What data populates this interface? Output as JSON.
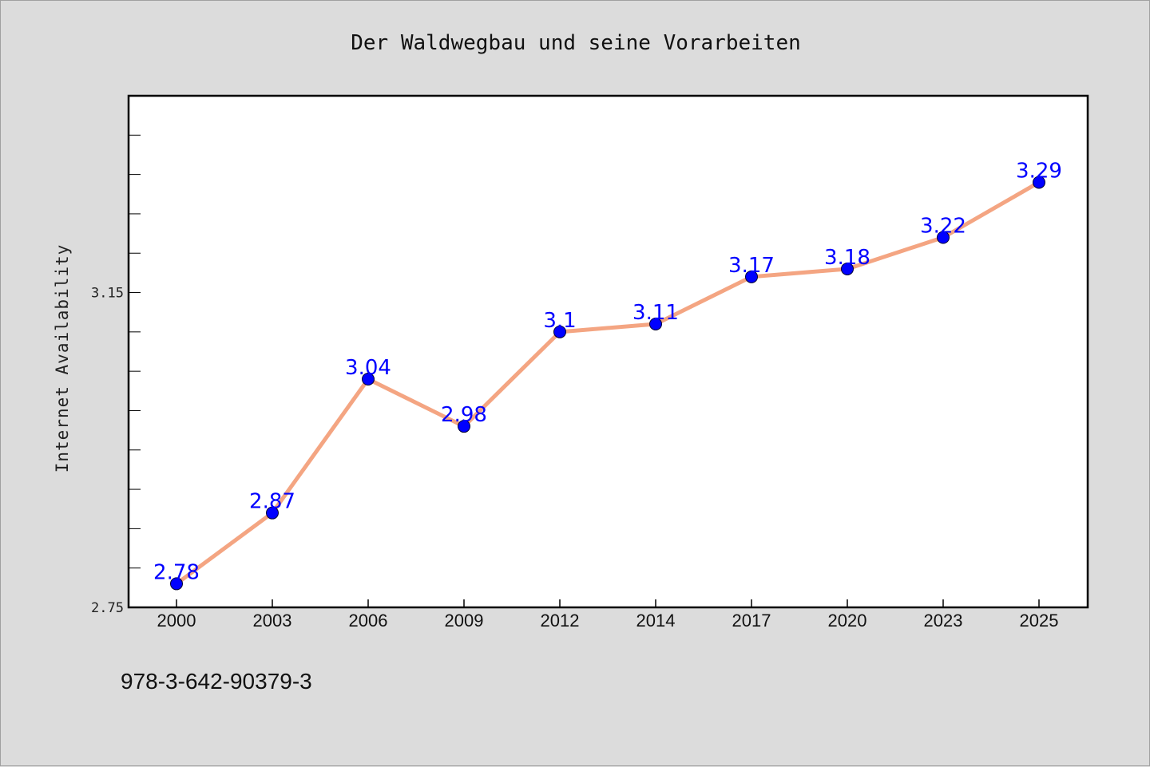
{
  "chart_data": {
    "type": "line",
    "title": "Der Waldwegbau und seine Vorarbeiten",
    "xlabel": "",
    "ylabel": "Internet Availability",
    "categories": [
      "2000",
      "2003",
      "2006",
      "2009",
      "2012",
      "2014",
      "2017",
      "2020",
      "2023",
      "2025"
    ],
    "series": [
      {
        "values": [
          2.78,
          2.87,
          3.04,
          2.98,
          3.1,
          3.11,
          3.17,
          3.18,
          3.22,
          3.29
        ],
        "data_labels": [
          "2.78",
          "2.87",
          "3.04",
          "2.98",
          "3.1",
          "3.11",
          "3.17",
          "3.18",
          "3.22",
          "3.29"
        ],
        "line_color": "#f4a582",
        "marker_color": "#0000ff",
        "label_color": "#0000ff"
      }
    ],
    "ylim": [
      2.75,
      3.4
    ],
    "y_tick_labels": [
      "2.75",
      "3.15"
    ],
    "y_tick_values": [
      2.75,
      3.15
    ],
    "y_minor_step": 0.05,
    "grid": false,
    "legend": "none"
  },
  "footer": {
    "isbn": "978-3-642-90379-3"
  },
  "colors": {
    "background": "#dcdcdc",
    "plot_background": "#ffffff",
    "axis": "#000000"
  }
}
